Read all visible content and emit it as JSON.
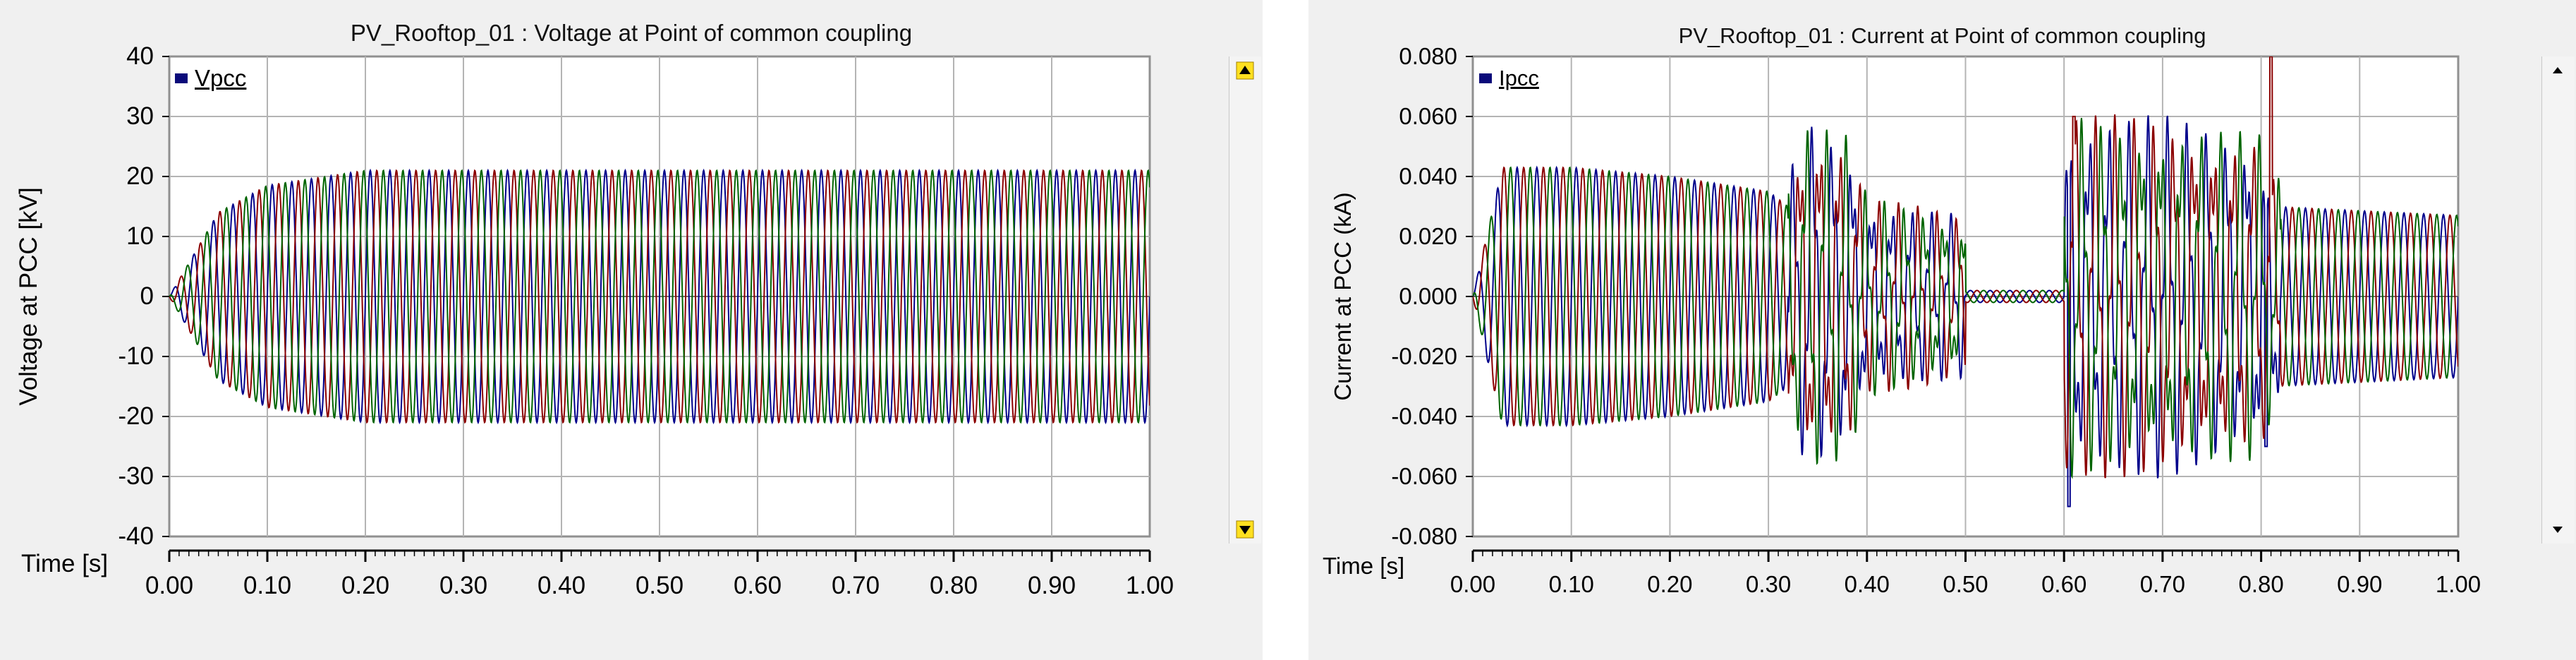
{
  "chart_data": [
    {
      "type": "line",
      "title": "PV_Rooftop_01 : Voltage at Point of common coupling",
      "xlabel": "Time [s]",
      "ylabel": "Voltage at PCC [kV]",
      "xlim": [
        0.0,
        1.0
      ],
      "ylim": [
        -40,
        40
      ],
      "x_ticks": [
        "0.00",
        "0.10",
        "0.20",
        "0.30",
        "0.40",
        "0.50",
        "0.60",
        "0.70",
        "0.80",
        "0.90",
        "1.00"
      ],
      "y_ticks": [
        "40",
        "30",
        "20",
        "10",
        "0",
        "-10",
        "-20",
        "-30",
        "-40"
      ],
      "grid": true,
      "legend": "top-left",
      "series": [
        {
          "name": "Vpcc",
          "phase": "A",
          "color": "#00008b"
        },
        {
          "name": "",
          "phase": "B",
          "color": "#8b0000"
        },
        {
          "name": "",
          "phase": "C",
          "color": "#006400"
        }
      ],
      "frequency_hz": 50,
      "steady_amplitude_kV": 21,
      "envelope": [
        [
          0.0,
          0
        ],
        [
          0.05,
          14
        ],
        [
          0.1,
          18.5
        ],
        [
          0.2,
          21
        ],
        [
          1.0,
          21
        ]
      ]
    },
    {
      "type": "line",
      "title": "PV_Rooftop_01 : Current at Point of common coupling",
      "xlabel": "Time [s]",
      "ylabel": "Current at PCC (kA)",
      "xlim": [
        0.0,
        1.0
      ],
      "ylim": [
        -0.08,
        0.08
      ],
      "x_ticks": [
        "0.00",
        "0.10",
        "0.20",
        "0.30",
        "0.40",
        "0.50",
        "0.60",
        "0.70",
        "0.80",
        "0.90",
        "1.00"
      ],
      "y_ticks": [
        "0.080",
        "0.060",
        "0.040",
        "0.020",
        "0.000",
        "-0.020",
        "-0.040",
        "-0.060",
        "-0.080"
      ],
      "grid": true,
      "legend": "top-left",
      "series": [
        {
          "name": "Ipcc",
          "phase": "A",
          "color": "#00008b"
        },
        {
          "name": "",
          "phase": "B",
          "color": "#8b0000"
        },
        {
          "name": "",
          "phase": "C",
          "color": "#006400"
        }
      ],
      "frequency_hz": 50,
      "envelope": [
        [
          0.0,
          0.0
        ],
        [
          0.03,
          0.043
        ],
        [
          0.1,
          0.043
        ],
        [
          0.2,
          0.04
        ],
        [
          0.3,
          0.035
        ],
        [
          0.32,
          0.03
        ],
        [
          0.34,
          0.045
        ],
        [
          0.38,
          0.04
        ],
        [
          0.4,
          0.025
        ],
        [
          0.5,
          0.02
        ],
        [
          0.5,
          0.002
        ],
        [
          0.6,
          0.002
        ],
        [
          0.6,
          0.045
        ],
        [
          0.7,
          0.045
        ],
        [
          0.8,
          0.04
        ],
        [
          0.81,
          0.03
        ],
        [
          1.0,
          0.027
        ]
      ],
      "spikes": [
        {
          "t": 0.605,
          "value": -0.07
        },
        {
          "t": 0.61,
          "value": 0.06
        },
        {
          "t": 0.81,
          "value": 0.08
        },
        {
          "t": 0.805,
          "value": -0.05
        }
      ]
    }
  ]
}
